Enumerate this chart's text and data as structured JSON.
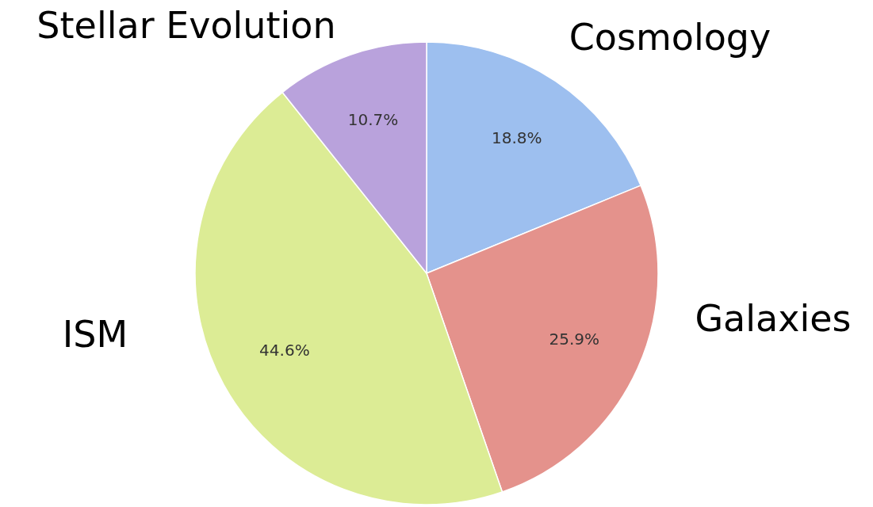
{
  "chart_data": {
    "type": "pie",
    "categories": [
      "Cosmology",
      "Galaxies",
      "ISM",
      "Stellar Evolution"
    ],
    "values": [
      18.8,
      25.9,
      44.6,
      10.7
    ],
    "colors": [
      "#9dbfef",
      "#e4928c",
      "#dcec95",
      "#b9a2dc"
    ],
    "value_labels": [
      "18.8%",
      "25.9%",
      "44.6%",
      "10.7%"
    ]
  }
}
